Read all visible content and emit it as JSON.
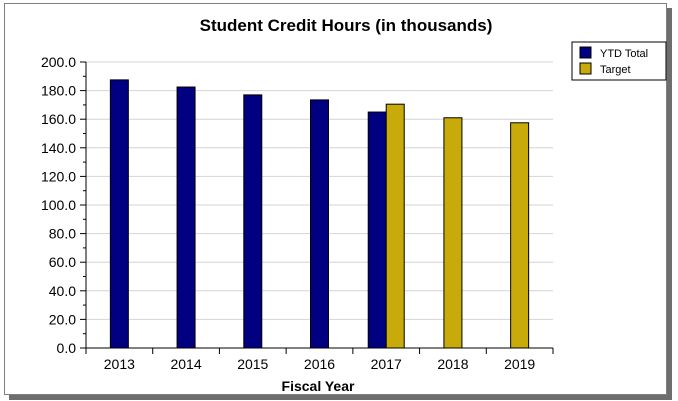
{
  "chart_data": {
    "type": "bar",
    "title": "Student Credit Hours (in thousands)",
    "xlabel": "Fiscal Year",
    "ylabel": "",
    "categories": [
      "2013",
      "2014",
      "2015",
      "2016",
      "2017",
      "2018",
      "2019"
    ],
    "ylim": [
      0,
      200
    ],
    "yticks": [
      "0.0",
      "20.0",
      "40.0",
      "60.0",
      "80.0",
      "100.0",
      "120.0",
      "140.0",
      "160.0",
      "180.0",
      "200.0"
    ],
    "grid": true,
    "legend_position": "top-right",
    "series": [
      {
        "name": "YTD Total",
        "color": "#000080",
        "values": [
          187.5,
          182.5,
          177.0,
          173.5,
          165.0,
          null,
          null
        ]
      },
      {
        "name": "Target",
        "color": "#c8aa0a",
        "values": [
          null,
          null,
          null,
          null,
          170.5,
          161.0,
          157.5
        ]
      }
    ]
  }
}
